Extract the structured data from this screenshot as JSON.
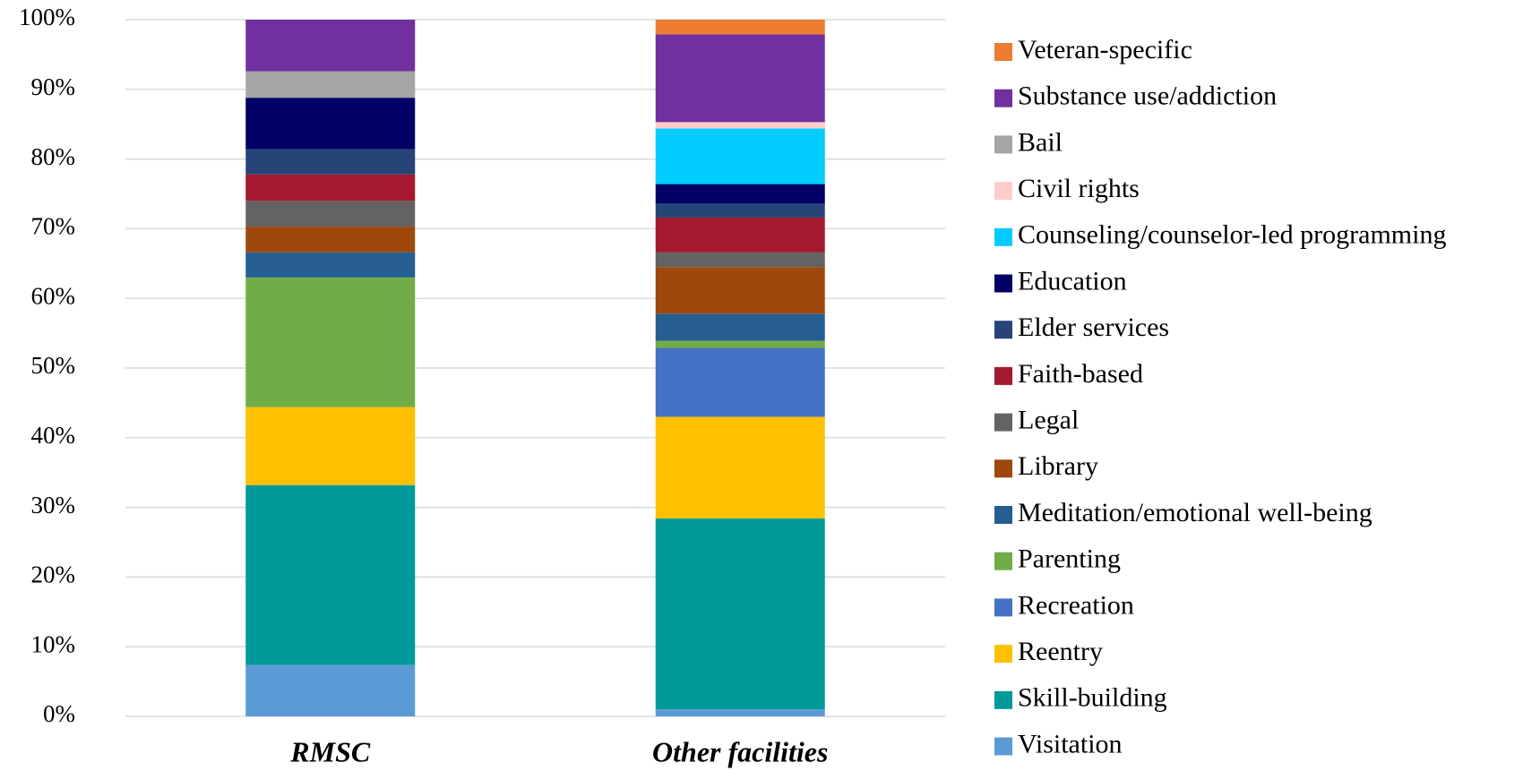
{
  "chart_data": {
    "type": "stacked_bar",
    "categories": [
      "RMSC",
      "Other facilities"
    ],
    "series": [
      {
        "name": "Visitation",
        "color": "#5b9bd5",
        "values": [
          7.4,
          1.0
        ]
      },
      {
        "name": "Skill-building",
        "color": "#009999",
        "values": [
          25.8,
          27.4
        ]
      },
      {
        "name": "Reentry",
        "color": "#ffc000",
        "values": [
          11.2,
          14.6
        ]
      },
      {
        "name": "Recreation",
        "color": "#4472c4",
        "values": [
          0,
          9.9
        ]
      },
      {
        "name": "Parenting",
        "color": "#70ad47",
        "values": [
          18.6,
          1.0
        ]
      },
      {
        "name": "Meditation/emotional well-being",
        "color": "#255e91",
        "values": [
          3.6,
          3.9
        ]
      },
      {
        "name": "Library",
        "color": "#9e480e",
        "values": [
          3.7,
          6.7
        ]
      },
      {
        "name": "Legal",
        "color": "#636363",
        "values": [
          3.7,
          2.1
        ]
      },
      {
        "name": "Faith-based",
        "color": "#a5192e",
        "values": [
          3.8,
          5.0
        ]
      },
      {
        "name": "Elder services",
        "color": "#264478",
        "values": [
          3.6,
          2.0
        ]
      },
      {
        "name": "Education",
        "color": "#000066",
        "values": [
          7.4,
          2.8
        ]
      },
      {
        "name": "Counseling/counselor-led programming",
        "color": "#00ccff",
        "values": [
          0,
          8.0
        ]
      },
      {
        "name": "Civil rights",
        "color": "#ffcccc",
        "values": [
          0,
          0.9
        ]
      },
      {
        "name": "Bail",
        "color": "#a5a5a5",
        "values": [
          3.8,
          0
        ]
      },
      {
        "name": "Substance use/addiction",
        "color": "#7030a0",
        "values": [
          7.4,
          12.6
        ]
      },
      {
        "name": "Veteran-specific",
        "color": "#ed7d31",
        "values": [
          0,
          2.1
        ]
      }
    ],
    "ylim": [
      0,
      100
    ],
    "yticks": [
      {
        "value": 0,
        "label": "0%"
      },
      {
        "value": 10,
        "label": "10%"
      },
      {
        "value": 20,
        "label": "20%"
      },
      {
        "value": 30,
        "label": "30%"
      },
      {
        "value": 40,
        "label": "40%"
      },
      {
        "value": 50,
        "label": "50%"
      },
      {
        "value": 60,
        "label": "60%"
      },
      {
        "value": 70,
        "label": "70%"
      },
      {
        "value": 80,
        "label": "80%"
      },
      {
        "value": 90,
        "label": "90%"
      },
      {
        "value": 100,
        "label": "100%"
      }
    ],
    "grid": true,
    "legend": "right"
  }
}
